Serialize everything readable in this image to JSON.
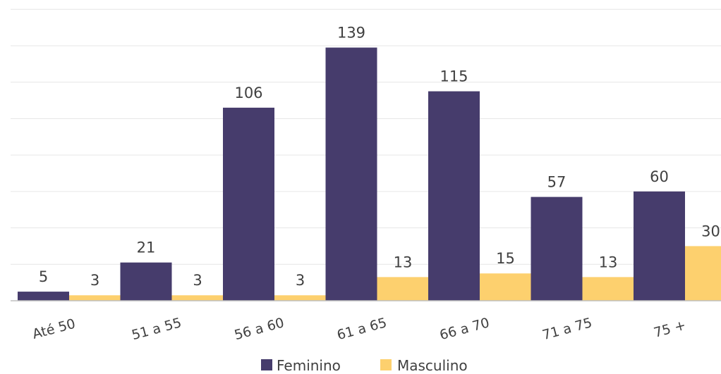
{
  "chart_data": {
    "type": "bar",
    "categories": [
      "Até 50",
      "51 a 55",
      "56 a 60",
      "61 a 65",
      "66 a 70",
      "71 a 75",
      "75 +"
    ],
    "series": [
      {
        "name": "Feminino",
        "values": [
          5,
          21,
          106,
          139,
          115,
          57,
          60
        ],
        "color": "#463c6c"
      },
      {
        "name": "Masculino",
        "values": [
          3,
          3,
          3,
          13,
          15,
          13,
          30
        ],
        "color": "#fdd06e"
      }
    ],
    "ylim": [
      0,
      160
    ],
    "grid": true,
    "legend": "bottom"
  }
}
